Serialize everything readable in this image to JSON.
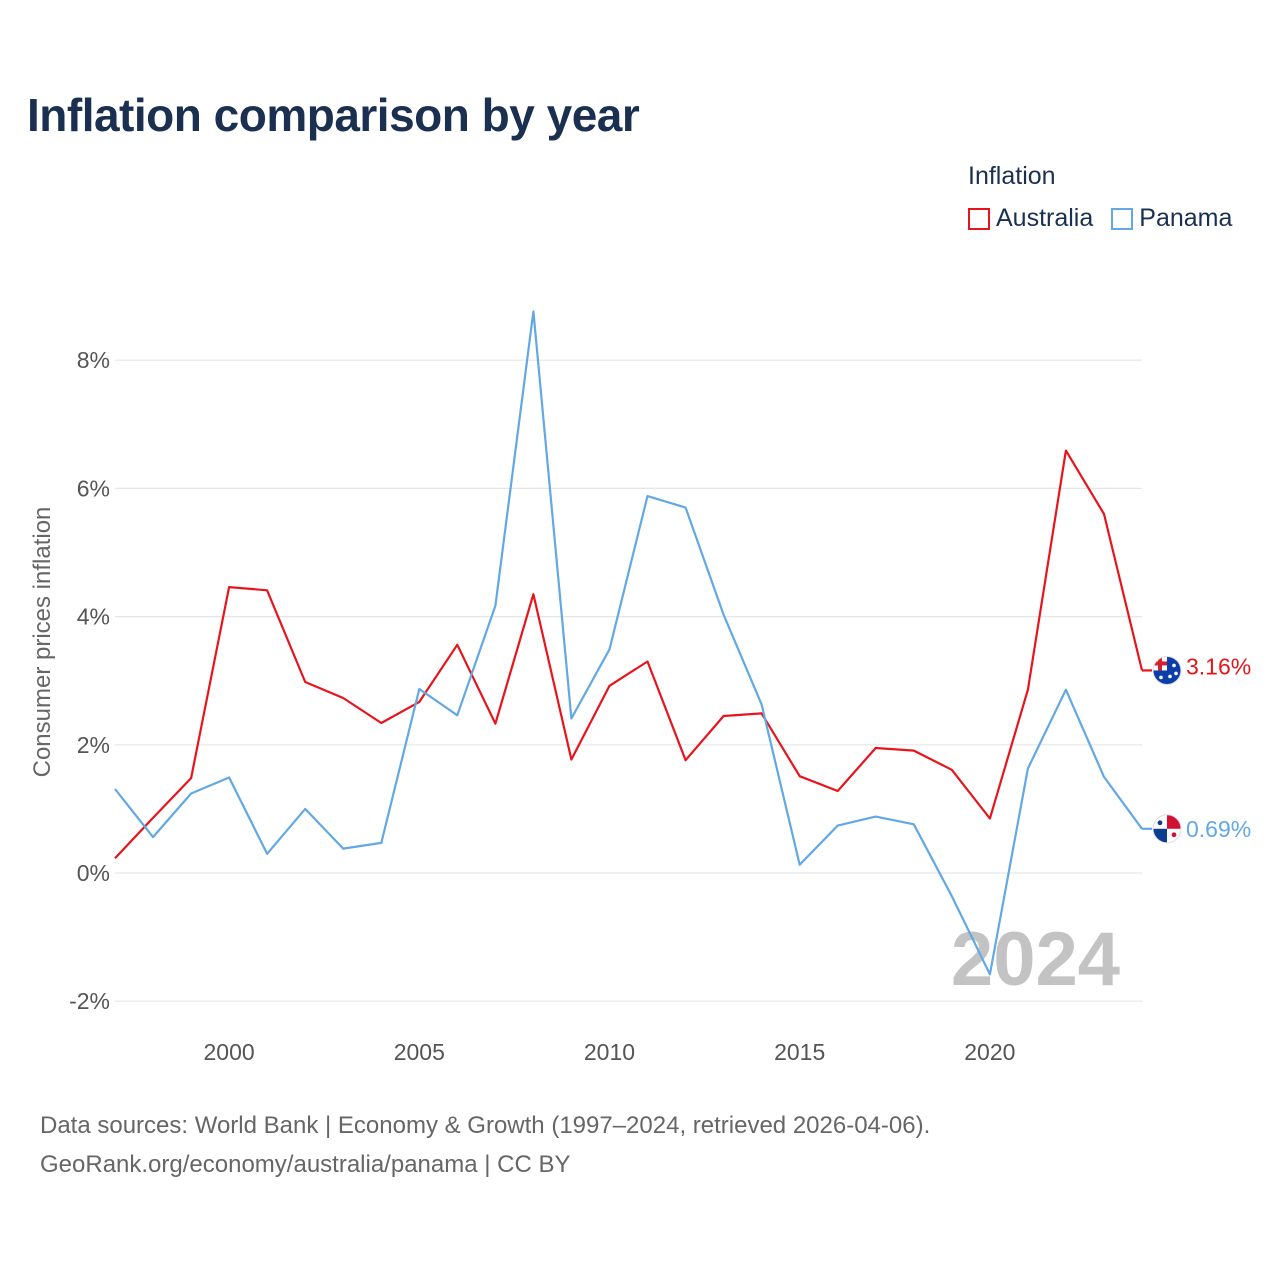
{
  "chart_data": {
    "type": "line",
    "title": "Inflation comparison by year",
    "legend_title": "Inflation",
    "xlabel": "",
    "ylabel": "Consumer prices inflation",
    "x": [
      1997,
      1998,
      1999,
      2000,
      2001,
      2002,
      2003,
      2004,
      2005,
      2006,
      2007,
      2008,
      2009,
      2010,
      2011,
      2012,
      2013,
      2014,
      2015,
      2016,
      2017,
      2018,
      2019,
      2020,
      2021,
      2022,
      2023,
      2024
    ],
    "xlim": [
      1997,
      2024
    ],
    "ylim": [
      -2.5,
      9.2
    ],
    "x_ticks": [
      2000,
      2005,
      2010,
      2015,
      2020
    ],
    "x_tick_labels": [
      "2000",
      "2005",
      "2010",
      "2015",
      "2020"
    ],
    "y_ticks": [
      -2,
      0,
      2,
      4,
      6,
      8
    ],
    "y_tick_labels": [
      "-2%",
      "0%",
      "2%",
      "4%",
      "6%",
      "8%"
    ],
    "grid": true,
    "legend_position": "top-right",
    "series": [
      {
        "name": "Australia",
        "color": "#e8141c",
        "end_label": "3.16%",
        "flag": "australia-flag",
        "values": [
          0.23,
          0.86,
          1.48,
          4.46,
          4.41,
          2.98,
          2.73,
          2.34,
          2.67,
          3.56,
          2.33,
          4.35,
          1.77,
          2.92,
          3.3,
          1.76,
          2.45,
          2.49,
          1.51,
          1.28,
          1.95,
          1.91,
          1.61,
          0.85,
          2.86,
          6.59,
          5.6,
          3.16
        ]
      },
      {
        "name": "Panama",
        "color": "#62a8e5",
        "end_label": "0.69%",
        "flag": "panama-flag",
        "values": [
          1.31,
          0.56,
          1.24,
          1.49,
          0.3,
          1.0,
          0.38,
          0.47,
          2.87,
          2.46,
          4.17,
          8.76,
          2.41,
          3.49,
          5.88,
          5.7,
          4.03,
          2.63,
          0.13,
          0.74,
          0.88,
          0.76,
          -0.36,
          -1.58,
          1.63,
          2.86,
          1.5,
          0.69
        ]
      }
    ],
    "watermark_year": "2024"
  },
  "footer": {
    "line1": "Data sources: World Bank | Economy & Growth (1997–2024, retrieved 2026-04-06).",
    "line2": "GeoRank.org/economy/australia/panama | CC BY"
  }
}
